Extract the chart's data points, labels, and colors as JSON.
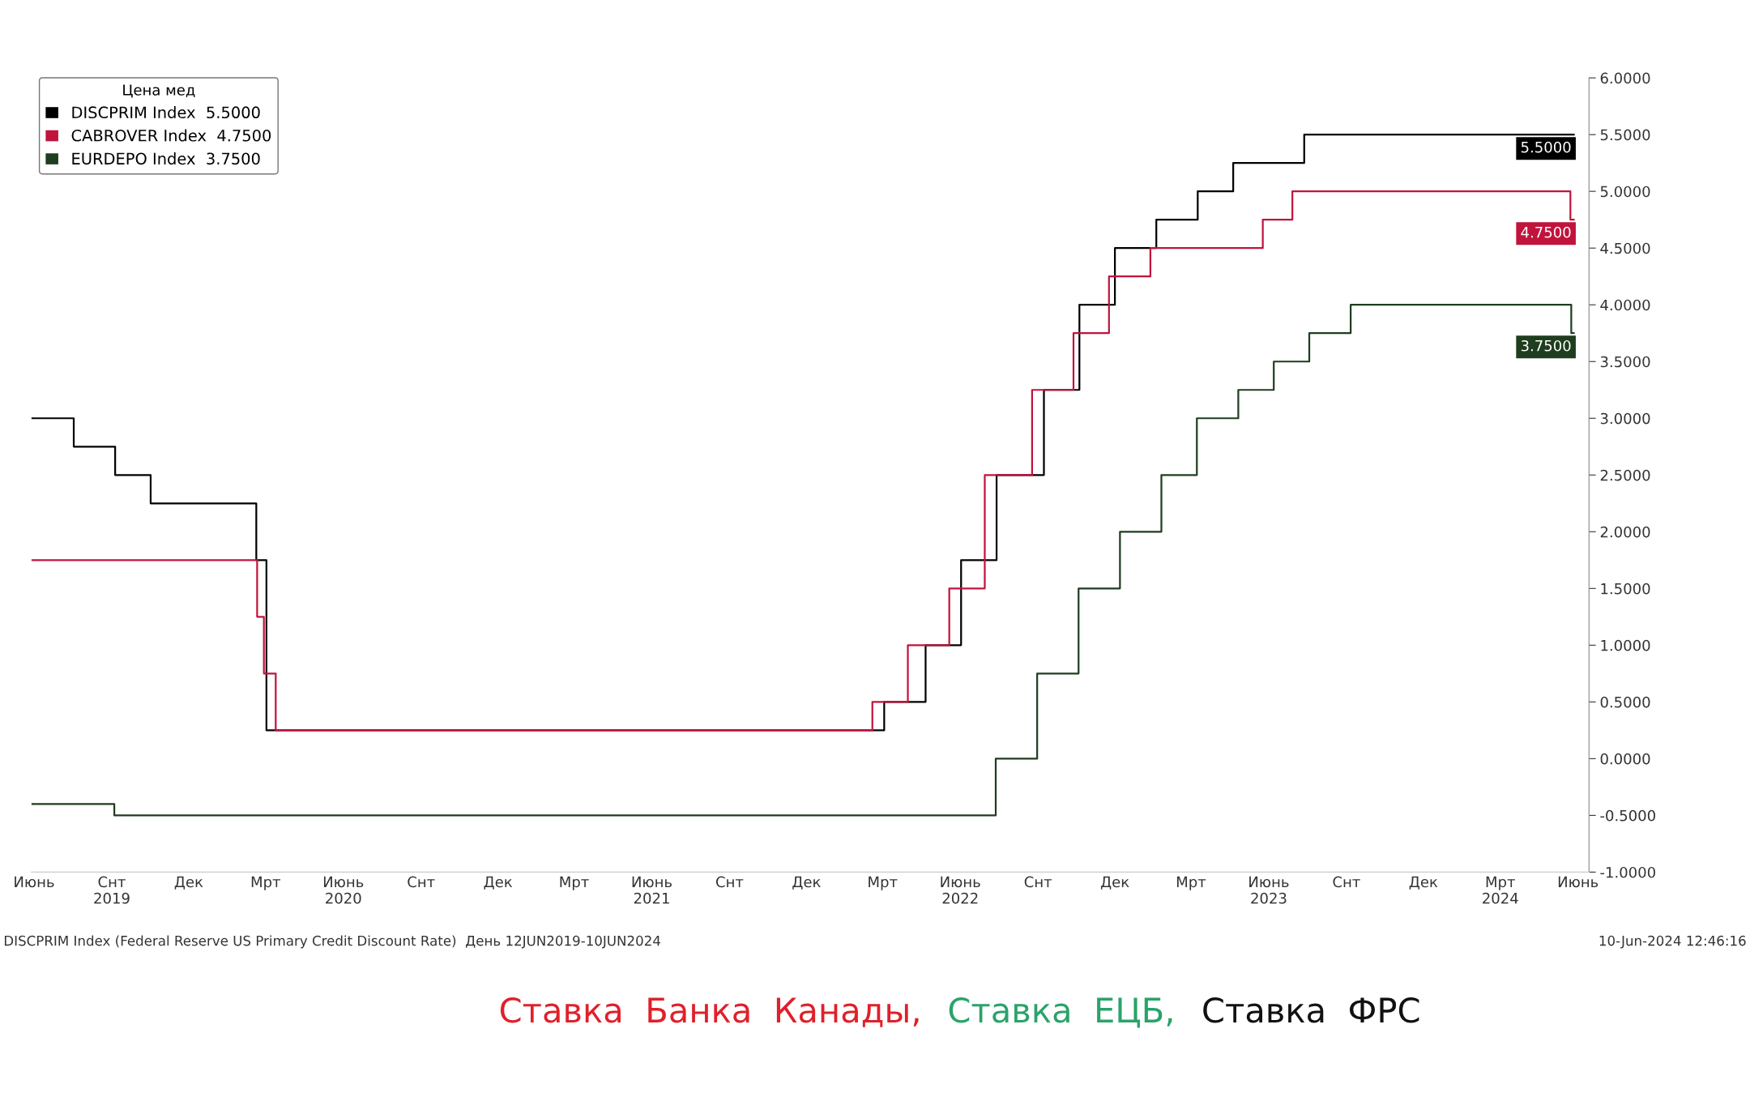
{
  "chart_data": {
    "type": "step",
    "legend_title": "Цена мед",
    "legend": "top left",
    "grid": false,
    "line_style": "solid",
    "marker": "none",
    "xlim": [
      "2019-06-12",
      "2024-06-28"
    ],
    "xticks": [
      {
        "value": "2019-06-15",
        "label": "Июнь"
      },
      {
        "value": "2019-09-15",
        "label": "Снт\n2019"
      },
      {
        "value": "2019-12-15",
        "label": "Дек"
      },
      {
        "value": "2020-03-15",
        "label": "Мрт"
      },
      {
        "value": "2020-06-15",
        "label": "Июнь\n2020"
      },
      {
        "value": "2020-09-15",
        "label": "Снт"
      },
      {
        "value": "2020-12-15",
        "label": "Дек"
      },
      {
        "value": "2021-03-15",
        "label": "Мрт"
      },
      {
        "value": "2021-06-15",
        "label": "Июнь\n2021"
      },
      {
        "value": "2021-09-15",
        "label": "Снт"
      },
      {
        "value": "2021-12-15",
        "label": "Дек"
      },
      {
        "value": "2022-03-15",
        "label": "Мрт"
      },
      {
        "value": "2022-06-15",
        "label": "Июнь\n2022"
      },
      {
        "value": "2022-09-15",
        "label": "Снт"
      },
      {
        "value": "2022-12-15",
        "label": "Дек"
      },
      {
        "value": "2023-03-15",
        "label": "Мрт"
      },
      {
        "value": "2023-06-15",
        "label": "Июнь\n2023"
      },
      {
        "value": "2023-09-15",
        "label": "Снт"
      },
      {
        "value": "2023-12-15",
        "label": "Дек"
      },
      {
        "value": "2024-03-15",
        "label": "Мрт\n2024"
      },
      {
        "value": "2024-06-15",
        "label": "Июнь"
      }
    ],
    "ylim": [
      -1,
      6
    ],
    "yticks": [
      {
        "value": -1,
        "label": "-1.0000"
      },
      {
        "value": -0.5,
        "label": "-0.5000"
      },
      {
        "value": 0,
        "label": "0.0000"
      },
      {
        "value": 0.5,
        "label": "0.5000"
      },
      {
        "value": 1,
        "label": "1.0000"
      },
      {
        "value": 1.5,
        "label": "1.5000"
      },
      {
        "value": 2,
        "label": "2.0000"
      },
      {
        "value": 2.5,
        "label": "2.5000"
      },
      {
        "value": 3,
        "label": "3.0000"
      },
      {
        "value": 3.5,
        "label": "3.5000"
      },
      {
        "value": 4,
        "label": "4.0000"
      },
      {
        "value": 4.5,
        "label": "4.5000"
      },
      {
        "value": 5,
        "label": "5.0000"
      },
      {
        "value": 5.5,
        "label": "5.5000"
      },
      {
        "value": 6,
        "label": "6.0000"
      }
    ],
    "series": [
      {
        "name": "DISCPRIM Index  5.5000",
        "color": "#000000",
        "x": [
          "2019-06-12",
          "2019-08-01",
          "2019-09-19",
          "2019-10-31",
          "2020-03-04",
          "2020-03-16",
          "2022-03-17",
          "2022-05-05",
          "2022-06-16",
          "2022-07-28",
          "2022-09-22",
          "2022-11-03",
          "2022-12-15",
          "2023-02-02",
          "2023-03-23",
          "2023-05-04",
          "2023-07-27",
          "2024-06-10"
        ],
        "values": [
          3.0,
          2.75,
          2.5,
          2.25,
          1.75,
          0.25,
          0.5,
          1.0,
          1.75,
          2.5,
          3.25,
          4.0,
          4.5,
          4.75,
          5.0,
          5.25,
          5.5,
          5.5
        ]
      },
      {
        "name": "CABROVER Index  4.7500",
        "color": "#c0143c",
        "x": [
          "2019-06-12",
          "2020-03-05",
          "2020-03-13",
          "2020-03-27",
          "2022-03-03",
          "2022-04-14",
          "2022-06-02",
          "2022-07-14",
          "2022-09-08",
          "2022-10-27",
          "2022-12-08",
          "2023-01-26",
          "2023-06-08",
          "2023-07-13",
          "2024-06-06",
          "2024-06-10"
        ],
        "values": [
          1.75,
          1.25,
          0.75,
          0.25,
          0.5,
          1.0,
          1.5,
          2.5,
          3.25,
          3.75,
          4.25,
          4.5,
          4.75,
          5.0,
          4.75,
          4.75
        ]
      },
      {
        "name": "EURDEPO Index  3.7500",
        "color": "#1f3d1f",
        "x": [
          "2019-06-12",
          "2019-09-18",
          "2022-07-27",
          "2022-09-14",
          "2022-11-02",
          "2022-12-21",
          "2023-02-08",
          "2023-03-22",
          "2023-05-10",
          "2023-06-21",
          "2023-08-02",
          "2023-09-20",
          "2024-06-07",
          "2024-06-10"
        ],
        "values": [
          -0.4,
          -0.5,
          0.0,
          0.75,
          1.5,
          2.0,
          2.5,
          3.0,
          3.25,
          3.5,
          3.75,
          4.0,
          3.75,
          3.75
        ]
      }
    ],
    "annotations": [
      {
        "text": "5.5000",
        "x": "2024-06-10",
        "y": 5.5
      },
      {
        "text": "4.7500",
        "x": "2024-06-10",
        "y": 4.75
      },
      {
        "text": "3.7500",
        "x": "2024-06-10",
        "y": 3.75
      },
      "DISCPRIM Index (Federal Reserve US Primary Credit Discount Rate)  День 12JUN2019-10JUN2024",
      "10-Jun-2024 12:46:16",
      "Ставка  Банка  Канады,",
      "Ставка  ЕЦБ,",
      "Ставка  ФРС"
    ]
  }
}
